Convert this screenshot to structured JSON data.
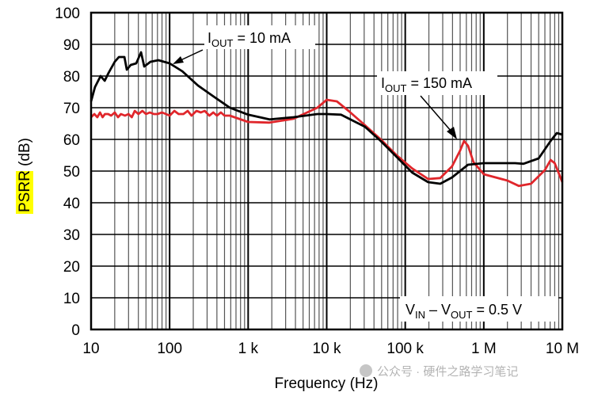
{
  "chart_data": {
    "type": "line",
    "xscale": "log",
    "xlabel": "Frequency (Hz)",
    "ylabel_highlight": "PSRR",
    "ylabel_rest": " (dB)",
    "xlim": [
      10,
      10000000
    ],
    "ylim": [
      0,
      100
    ],
    "grid": true,
    "xticks": [
      {
        "v": 10,
        "label": "10"
      },
      {
        "v": 100,
        "label": "100"
      },
      {
        "v": 1000,
        "label": "1 k"
      },
      {
        "v": 10000,
        "label": "10 k"
      },
      {
        "v": 100000,
        "label": "100 k"
      },
      {
        "v": 1000000,
        "label": "1 M"
      },
      {
        "v": 10000000,
        "label": "10 M"
      }
    ],
    "yticks": [
      0,
      10,
      20,
      30,
      40,
      50,
      60,
      70,
      80,
      90,
      100
    ],
    "series": [
      {
        "name": "IOUT = 10 mA",
        "color": "#000000",
        "x": [
          10,
          11.2,
          13.2,
          14.9,
          16.7,
          20,
          22.6,
          26.6,
          28.5,
          32,
          37.6,
          43.3,
          47.5,
          57,
          72,
          100,
          145,
          230,
          365,
          585,
          1000,
          1870,
          3770,
          7600,
          10000,
          15200,
          30600,
          48700,
          77500,
          123000,
          196000,
          279000,
          395000,
          630000,
          1000000,
          2500000,
          3200000,
          5000000,
          7100000,
          8500000,
          10000000
        ],
        "y": [
          72,
          76.5,
          80,
          78.5,
          81,
          84.5,
          86,
          86,
          82,
          83.5,
          84,
          87.5,
          83,
          84.5,
          85,
          84,
          81.5,
          77,
          73.5,
          70,
          67.8,
          66.3,
          67,
          68,
          68,
          67.8,
          64,
          59.5,
          54.5,
          49.5,
          46.5,
          46,
          48,
          52,
          52.5,
          52.5,
          52.3,
          54,
          59.5,
          62,
          61.5
        ]
      },
      {
        "name": "IOUT = 150 mA",
        "color": "#e0262b",
        "x": [
          10,
          11,
          12,
          13,
          14,
          15,
          16.5,
          18,
          20,
          22,
          24,
          27,
          30,
          33,
          36,
          40,
          45,
          50,
          56,
          63,
          70,
          80,
          90,
          100,
          115,
          130,
          150,
          170,
          190,
          220,
          250,
          280,
          320,
          360,
          400,
          450,
          500,
          585,
          1000,
          1870,
          3770,
          7600,
          10000,
          13500,
          19000,
          30600,
          48700,
          77500,
          123000,
          196000,
          279000,
          395000,
          500000,
          560000,
          630000,
          740000,
          1000000,
          2000000,
          2800000,
          4000000,
          6000000,
          7100000,
          8000000,
          10000000
        ],
        "y": [
          67,
          68,
          67,
          68.5,
          67,
          68,
          68,
          67.5,
          68.5,
          67,
          68,
          67.5,
          68,
          67,
          69,
          68,
          69,
          68,
          68.5,
          68,
          68,
          68.5,
          68,
          67.5,
          69,
          68,
          68,
          69,
          67.5,
          69,
          68.5,
          69,
          67.5,
          68.5,
          67.5,
          68.5,
          67.5,
          67.5,
          65.5,
          65.3,
          66.5,
          70,
          72.5,
          72,
          69,
          64.5,
          60,
          55,
          50.8,
          47.5,
          47.8,
          51.5,
          56.5,
          59.5,
          58,
          52.8,
          49,
          47,
          45.3,
          46,
          50.3,
          53.5,
          52.5,
          46.5
        ]
      }
    ],
    "annotations": [
      {
        "main": "I",
        "sub": "OUT",
        "rest": " = 10 mA"
      },
      {
        "main": "I",
        "sub": "OUT",
        "rest": " = 150 mA"
      },
      {
        "a": "V",
        "asub": "IN",
        "mid": " – V",
        "bsub": "OUT",
        "rest": " = 0.5 V"
      }
    ]
  },
  "watermark": "公众号 · 硬件之路学习笔记"
}
